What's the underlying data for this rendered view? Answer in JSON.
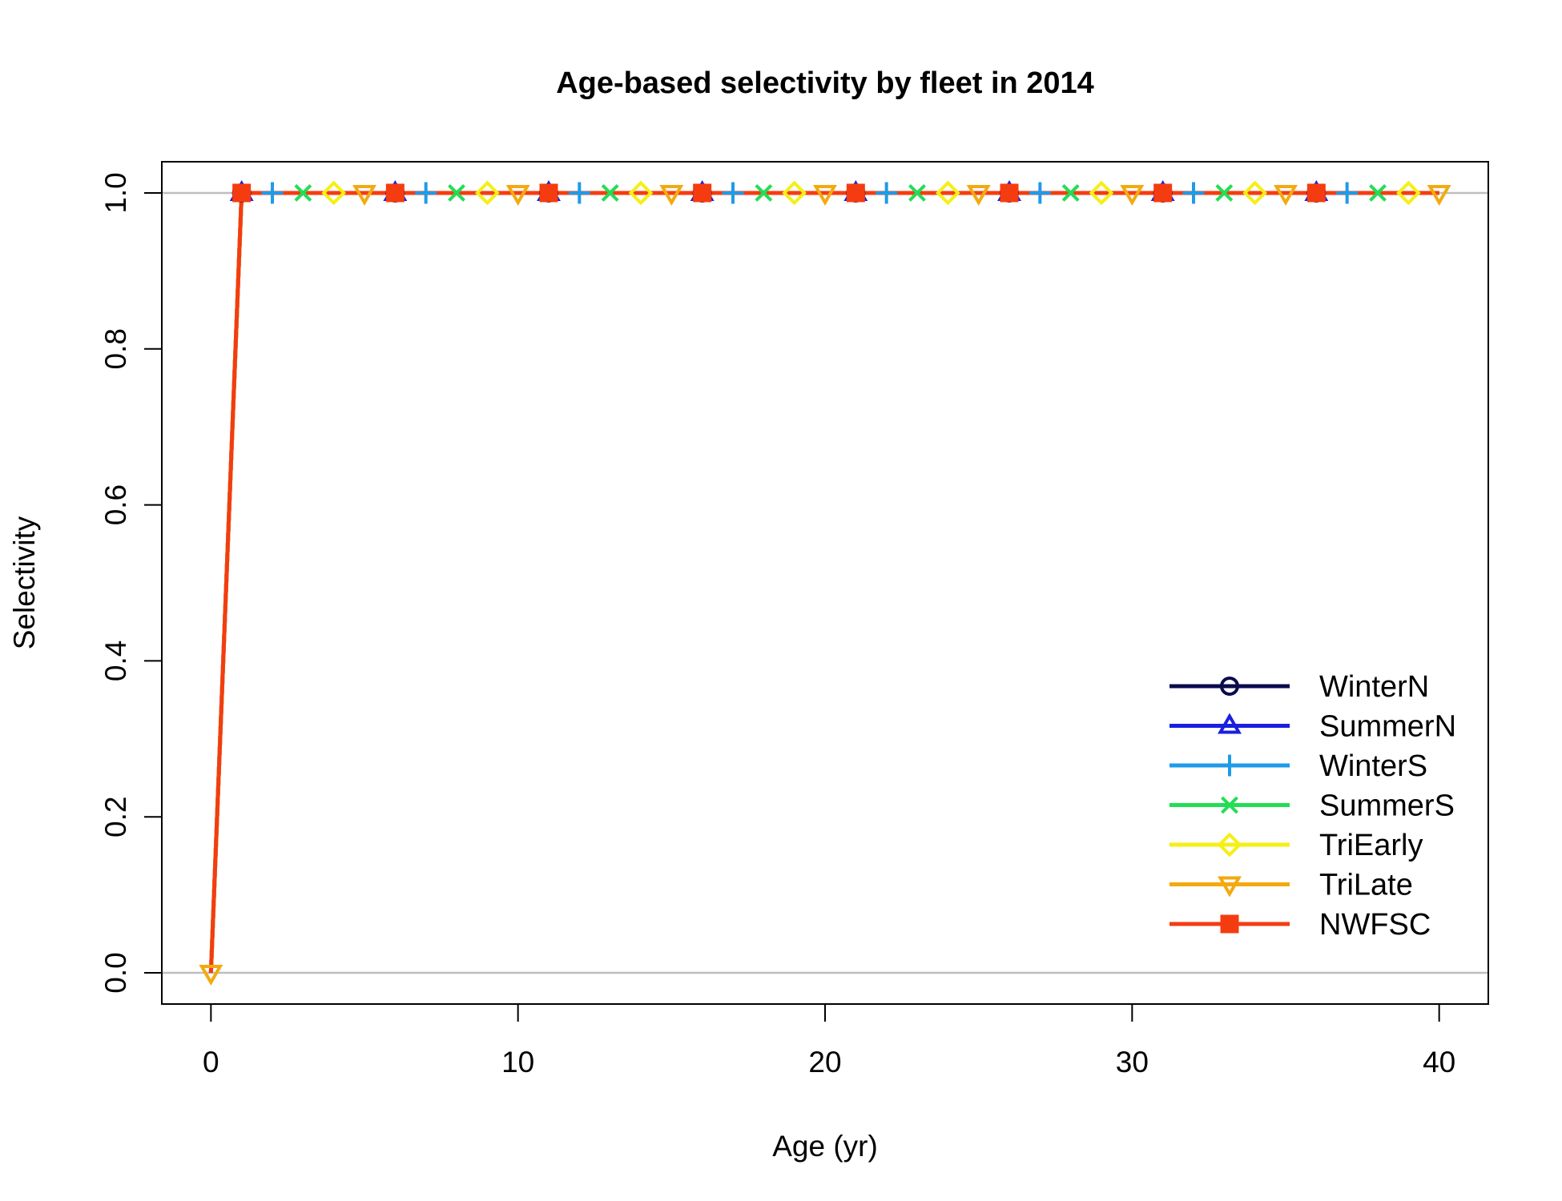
{
  "chart_data": {
    "type": "line",
    "title": "Age-based selectivity by fleet in 2014",
    "xlabel": "Age (yr)",
    "ylabel": "Selectivity",
    "xlim": [
      -1.6,
      41.6
    ],
    "ylim": [
      -0.04,
      1.04
    ],
    "x_ticks": [
      0,
      10,
      20,
      30,
      40
    ],
    "y_ticks": [
      0,
      0.2,
      0.4,
      0.6,
      0.8,
      1
    ],
    "x_tick_labels": [
      "0",
      "10",
      "20",
      "30",
      "40"
    ],
    "y_tick_labels": [
      "0.0",
      "0.2",
      "0.4",
      "0.6",
      "0.8",
      "1.0"
    ],
    "reference_lines": [
      0,
      1
    ],
    "grid": false,
    "legend_position": "bottom-right",
    "x": [
      0,
      1,
      2,
      3,
      4,
      5,
      6,
      7,
      8,
      9,
      10,
      11,
      12,
      13,
      14,
      15,
      16,
      17,
      18,
      19,
      20,
      21,
      22,
      23,
      24,
      25,
      26,
      27,
      28,
      29,
      30,
      31,
      32,
      33,
      34,
      35,
      36,
      37,
      38,
      39,
      40
    ],
    "series": [
      {
        "name": "WinterN",
        "color": "#0b0b4f",
        "marker": "circle",
        "marker_start": 1,
        "values": [
          0,
          1,
          1,
          1,
          1,
          1,
          1,
          1,
          1,
          1,
          1,
          1,
          1,
          1,
          1,
          1,
          1,
          1,
          1,
          1,
          1,
          1,
          1,
          1,
          1,
          1,
          1,
          1,
          1,
          1,
          1,
          1,
          1,
          1,
          1,
          1,
          1,
          1,
          1,
          1,
          1
        ]
      },
      {
        "name": "SummerN",
        "color": "#1a1fe0",
        "marker": "triangle-up",
        "marker_start": 1,
        "values": [
          0,
          1,
          1,
          1,
          1,
          1,
          1,
          1,
          1,
          1,
          1,
          1,
          1,
          1,
          1,
          1,
          1,
          1,
          1,
          1,
          1,
          1,
          1,
          1,
          1,
          1,
          1,
          1,
          1,
          1,
          1,
          1,
          1,
          1,
          1,
          1,
          1,
          1,
          1,
          1,
          1
        ]
      },
      {
        "name": "WinterS",
        "color": "#1e9be8",
        "marker": "plus",
        "marker_start": 2,
        "values": [
          0,
          1,
          1,
          1,
          1,
          1,
          1,
          1,
          1,
          1,
          1,
          1,
          1,
          1,
          1,
          1,
          1,
          1,
          1,
          1,
          1,
          1,
          1,
          1,
          1,
          1,
          1,
          1,
          1,
          1,
          1,
          1,
          1,
          1,
          1,
          1,
          1,
          1,
          1,
          1,
          1
        ]
      },
      {
        "name": "SummerS",
        "color": "#22dd55",
        "marker": "cross",
        "marker_start": 3,
        "values": [
          0,
          1,
          1,
          1,
          1,
          1,
          1,
          1,
          1,
          1,
          1,
          1,
          1,
          1,
          1,
          1,
          1,
          1,
          1,
          1,
          1,
          1,
          1,
          1,
          1,
          1,
          1,
          1,
          1,
          1,
          1,
          1,
          1,
          1,
          1,
          1,
          1,
          1,
          1,
          1,
          1
        ]
      },
      {
        "name": "TriEarly",
        "color": "#f5ef16",
        "marker": "diamond",
        "marker_start": 4,
        "values": [
          0,
          1,
          1,
          1,
          1,
          1,
          1,
          1,
          1,
          1,
          1,
          1,
          1,
          1,
          1,
          1,
          1,
          1,
          1,
          1,
          1,
          1,
          1,
          1,
          1,
          1,
          1,
          1,
          1,
          1,
          1,
          1,
          1,
          1,
          1,
          1,
          1,
          1,
          1,
          1,
          1
        ]
      },
      {
        "name": "TriLate",
        "color": "#f2aa10",
        "marker": "triangle-down",
        "marker_start": 0,
        "values": [
          0,
          1,
          1,
          1,
          1,
          1,
          1,
          1,
          1,
          1,
          1,
          1,
          1,
          1,
          1,
          1,
          1,
          1,
          1,
          1,
          1,
          1,
          1,
          1,
          1,
          1,
          1,
          1,
          1,
          1,
          1,
          1,
          1,
          1,
          1,
          1,
          1,
          1,
          1,
          1,
          1
        ]
      },
      {
        "name": "NWFSC",
        "color": "#f53c10",
        "marker": "square",
        "marker_start": 1,
        "values": [
          0,
          1,
          1,
          1,
          1,
          1,
          1,
          1,
          1,
          1,
          1,
          1,
          1,
          1,
          1,
          1,
          1,
          1,
          1,
          1,
          1,
          1,
          1,
          1,
          1,
          1,
          1,
          1,
          1,
          1,
          1,
          1,
          1,
          1,
          1,
          1,
          1,
          1,
          1,
          1,
          1
        ]
      }
    ]
  }
}
